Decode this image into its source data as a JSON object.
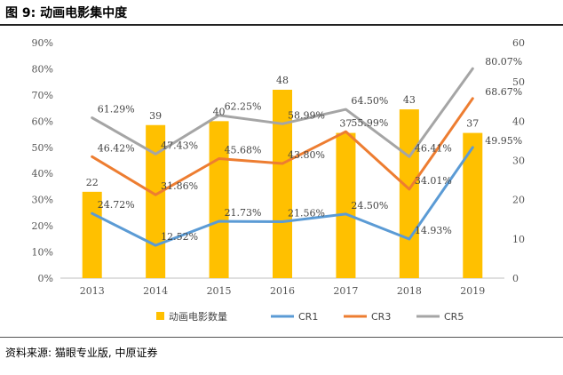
{
  "figure_title": "图 9:  动画电影集中度",
  "source": "资料来源:  猫眼专业版,  中原证券",
  "chart_data": {
    "type": "bar+line",
    "categories": [
      "2013",
      "2014",
      "2015",
      "2016",
      "2017",
      "2018",
      "2019"
    ],
    "bar_series": {
      "name": "动画电影数量",
      "values": [
        22,
        39,
        40,
        48,
        37,
        43,
        37
      ],
      "labels": [
        "22",
        "39",
        "40",
        "48",
        "37",
        "43",
        "37"
      ],
      "color": "#FFC000",
      "axis": "right"
    },
    "line_series": [
      {
        "name": "CR1",
        "values": [
          24.72,
          12.52,
          21.73,
          21.56,
          24.5,
          14.93,
          49.95
        ],
        "labels": [
          "24.72%",
          "12.52%",
          "21.73%",
          "21.56%",
          "24.50%",
          "14.93%",
          "49.95%"
        ],
        "color": "#5B9BD5"
      },
      {
        "name": "CR3",
        "values": [
          46.42,
          31.86,
          45.68,
          43.8,
          55.99,
          34.01,
          68.67
        ],
        "labels": [
          "46.42%",
          "31.86%",
          "45.68%",
          "43.80%",
          "55.99%",
          "34.01%",
          "68.67%"
        ],
        "color": "#ED7D31"
      },
      {
        "name": "CR5",
        "values": [
          61.29,
          47.43,
          62.25,
          58.99,
          64.5,
          46.41,
          80.07
        ],
        "labels": [
          "61.29%",
          "47.43%",
          "62.25%",
          "58.99%",
          "64.50%",
          "46.41%",
          "80.07%"
        ],
        "color": "#A5A5A5"
      }
    ],
    "left_axis": {
      "min": 0,
      "max": 90,
      "ticks": [
        "0%",
        "10%",
        "20%",
        "30%",
        "40%",
        "50%",
        "60%",
        "70%",
        "80%",
        "90%"
      ]
    },
    "right_axis": {
      "min": 0,
      "max": 60,
      "ticks": [
        "0",
        "10",
        "20",
        "30",
        "40",
        "50",
        "60"
      ]
    },
    "grid": false,
    "legend_position": "bottom"
  }
}
